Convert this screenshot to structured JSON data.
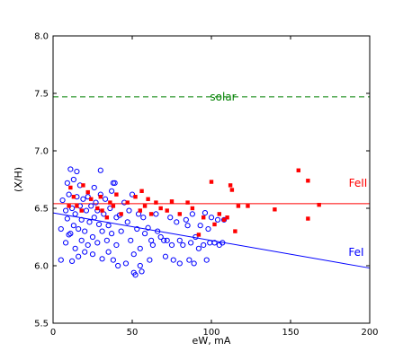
{
  "chart_data": {
    "type": "scatter",
    "title": "",
    "xlabel": "eW, mA",
    "ylabel": "(X/H)",
    "xlim": [
      0,
      200
    ],
    "ylim": [
      5.5,
      8.0
    ],
    "xticks": [
      0,
      50,
      100,
      150,
      200
    ],
    "yticks": [
      5.5,
      6.0,
      6.5,
      7.0,
      7.5,
      8.0
    ],
    "grid": false,
    "series": [
      {
        "name": "FeI",
        "marker": "open-circle",
        "color": "#0000ff",
        "points": [
          [
            5,
            6.05
          ],
          [
            5,
            6.32
          ],
          [
            6,
            6.57
          ],
          [
            8,
            6.2
          ],
          [
            8,
            6.48
          ],
          [
            9,
            6.72
          ],
          [
            9,
            6.41
          ],
          [
            10,
            6.27
          ],
          [
            10,
            6.62
          ],
          [
            11,
            6.84
          ],
          [
            11,
            6.28
          ],
          [
            12,
            6.04
          ],
          [
            12,
            6.5
          ],
          [
            13,
            6.75
          ],
          [
            13,
            6.35
          ],
          [
            14,
            6.15
          ],
          [
            14,
            6.45
          ],
          [
            15,
            6.6
          ],
          [
            15,
            6.82
          ],
          [
            16,
            6.32
          ],
          [
            16,
            6.08
          ],
          [
            17,
            6.52
          ],
          [
            17,
            6.7
          ],
          [
            18,
            6.22
          ],
          [
            18,
            6.4
          ],
          [
            19,
            6.58
          ],
          [
            20,
            6.12
          ],
          [
            20,
            6.3
          ],
          [
            21,
            6.48
          ],
          [
            22,
            6.6
          ],
          [
            22,
            6.18
          ],
          [
            23,
            6.38
          ],
          [
            24,
            6.52
          ],
          [
            25,
            6.25
          ],
          [
            25,
            6.1
          ],
          [
            26,
            6.42
          ],
          [
            26,
            6.68
          ],
          [
            27,
            6.55
          ],
          [
            28,
            6.2
          ],
          [
            28,
            6.48
          ],
          [
            29,
            6.36
          ],
          [
            30,
            6.83
          ],
          [
            30,
            6.62
          ],
          [
            31,
            6.3
          ],
          [
            31,
            6.06
          ],
          [
            32,
            6.45
          ],
          [
            33,
            6.58
          ],
          [
            34,
            6.22
          ],
          [
            35,
            6.35
          ],
          [
            35,
            6.12
          ],
          [
            36,
            6.5
          ],
          [
            37,
            6.65
          ],
          [
            37,
            6.28
          ],
          [
            38,
            6.05
          ],
          [
            38,
            6.72
          ],
          [
            39,
            6.72
          ],
          [
            40,
            6.42
          ],
          [
            40,
            6.18
          ],
          [
            41,
            6.0
          ],
          [
            42,
            6.44
          ],
          [
            43,
            6.3
          ],
          [
            45,
            6.55
          ],
          [
            46,
            6.02
          ],
          [
            47,
            6.38
          ],
          [
            48,
            6.48
          ],
          [
            49,
            6.22
          ],
          [
            50,
            6.62
          ],
          [
            51,
            5.94
          ],
          [
            51,
            6.1
          ],
          [
            52,
            5.92
          ],
          [
            53,
            6.32
          ],
          [
            54,
            6.45
          ],
          [
            55,
            6.0
          ],
          [
            55,
            6.15
          ],
          [
            56,
            5.95
          ],
          [
            57,
            6.42
          ],
          [
            58,
            6.28
          ],
          [
            60,
            6.33
          ],
          [
            61,
            6.05
          ],
          [
            62,
            6.22
          ],
          [
            63,
            6.18
          ],
          [
            65,
            6.45
          ],
          [
            66,
            6.3
          ],
          [
            68,
            6.25
          ],
          [
            70,
            6.22
          ],
          [
            71,
            6.08
          ],
          [
            72,
            6.22
          ],
          [
            74,
            6.42
          ],
          [
            75,
            6.18
          ],
          [
            76,
            6.05
          ],
          [
            78,
            6.38
          ],
          [
            80,
            6.22
          ],
          [
            80,
            6.02
          ],
          [
            82,
            6.18
          ],
          [
            84,
            6.4
          ],
          [
            85,
            6.35
          ],
          [
            86,
            6.05
          ],
          [
            87,
            6.2
          ],
          [
            88,
            6.45
          ],
          [
            89,
            6.02
          ],
          [
            90,
            6.25
          ],
          [
            92,
            6.15
          ],
          [
            93,
            6.35
          ],
          [
            95,
            6.18
          ],
          [
            96,
            6.46
          ],
          [
            97,
            6.05
          ],
          [
            98,
            6.32
          ],
          [
            99,
            6.2
          ],
          [
            100,
            6.42
          ],
          [
            102,
            6.2
          ],
          [
            104,
            6.4
          ],
          [
            105,
            6.18
          ],
          [
            107,
            6.2
          ],
          [
            108,
            6.4
          ]
        ]
      },
      {
        "name": "FeII",
        "marker": "filled-square",
        "color": "#ff0000",
        "points": [
          [
            10,
            6.52
          ],
          [
            11,
            6.68
          ],
          [
            13,
            6.6
          ],
          [
            15,
            6.52
          ],
          [
            18,
            6.48
          ],
          [
            19,
            6.7
          ],
          [
            22,
            6.64
          ],
          [
            24,
            6.58
          ],
          [
            28,
            6.5
          ],
          [
            30,
            6.6
          ],
          [
            31,
            6.48
          ],
          [
            34,
            6.42
          ],
          [
            36,
            6.55
          ],
          [
            38,
            6.52
          ],
          [
            40,
            6.62
          ],
          [
            43,
            6.45
          ],
          [
            47,
            6.55
          ],
          [
            52,
            6.6
          ],
          [
            55,
            6.48
          ],
          [
            56,
            6.65
          ],
          [
            58,
            6.52
          ],
          [
            60,
            6.58
          ],
          [
            62,
            6.45
          ],
          [
            65,
            6.55
          ],
          [
            68,
            6.5
          ],
          [
            72,
            6.48
          ],
          [
            75,
            6.56
          ],
          [
            80,
            6.45
          ],
          [
            85,
            6.55
          ],
          [
            88,
            6.5
          ],
          [
            92,
            6.27
          ],
          [
            95,
            6.42
          ],
          [
            100,
            6.73
          ],
          [
            102,
            6.36
          ],
          [
            105,
            6.45
          ],
          [
            108,
            6.4
          ],
          [
            110,
            6.42
          ],
          [
            112,
            6.7
          ],
          [
            113,
            6.66
          ],
          [
            115,
            6.3
          ],
          [
            117,
            6.52
          ],
          [
            123,
            6.52
          ],
          [
            140,
            6.49
          ],
          [
            155,
            6.83
          ],
          [
            161,
            6.74
          ],
          [
            161,
            6.41
          ],
          [
            168,
            6.53
          ]
        ]
      }
    ],
    "reference_lines": [
      {
        "label": "solar",
        "style": "dashed",
        "color": "#008000",
        "x": [
          0,
          200
        ],
        "y": [
          7.47,
          7.47
        ]
      },
      {
        "label": "FeII",
        "style": "solid",
        "color": "#ff0000",
        "x": [
          0,
          200
        ],
        "y": [
          6.54,
          6.54
        ]
      },
      {
        "label": "FeI",
        "style": "solid",
        "color": "#0000ff",
        "x": [
          0,
          200
        ],
        "y": [
          6.46,
          5.98
        ]
      }
    ]
  }
}
